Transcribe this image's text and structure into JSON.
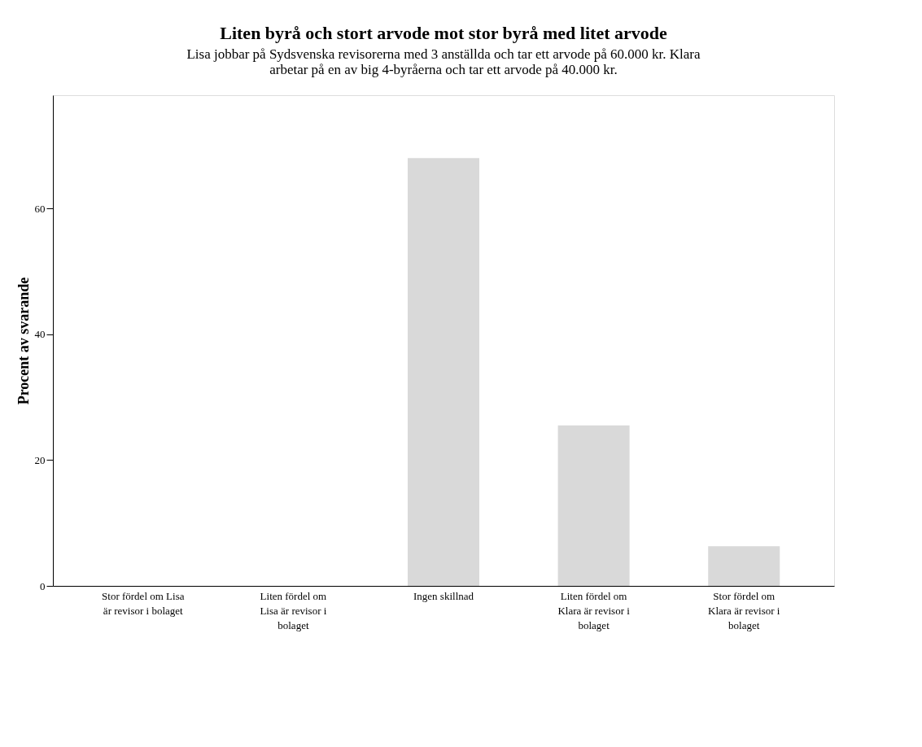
{
  "chart_data": {
    "type": "bar",
    "title": "Liten byrå och stort arvode mot stor byrå med litet arvode",
    "subtitle": [
      "Lisa jobbar på Sydsvenska revisorerna med 3 anställda och tar ett arvode på 60.000 kr. Klara",
      "arbetar på en av big 4-byråerna och tar ett arvode på 40.000 kr."
    ],
    "ylabel": "Procent av svarande",
    "categories": [
      "Stor fördel om Lisa\när revisor i bolaget",
      "Liten fördel om\nLisa är revisor i\nbolaget",
      "Ingen skillnad",
      "Liten fördel om\nKlara är revisor i\nbolaget",
      "Stor fördel om\nKlara är revisor i\nbolaget"
    ],
    "values": [
      0,
      0,
      68.0,
      25.5,
      6.3
    ],
    "color": "#d9d9d9",
    "ylim": [
      0,
      78
    ],
    "yticks": [
      0,
      20,
      40,
      60
    ],
    "grid": false
  }
}
